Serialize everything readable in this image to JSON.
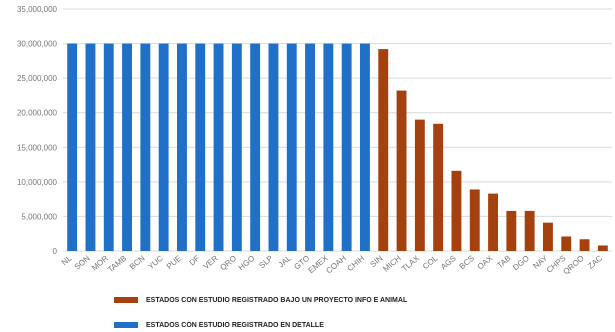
{
  "chart_data": {
    "type": "bar",
    "categories": [
      "NL",
      "SON",
      "MOR",
      "TAMB",
      "BCN",
      "YUC",
      "PUE",
      "DF",
      "VER",
      "QRO",
      "HGO",
      "SLP",
      "JAL",
      "GTO",
      "EMEX",
      "COAH",
      "CHIH",
      "SIN",
      "MICH",
      "TLAX",
      "COL",
      "AGS",
      "BCS",
      "OAX",
      "TAB",
      "DGO",
      "NAY",
      "CHPS",
      "QROO",
      "ZAC"
    ],
    "series": [
      {
        "name": "ESTADOS CON ESTUDIO REGISTRADO BAJO UN PROYECTO INFO E ANIMAL",
        "color": "#a4410e",
        "values": [
          null,
          null,
          null,
          null,
          null,
          null,
          null,
          null,
          null,
          null,
          null,
          null,
          null,
          null,
          null,
          null,
          null,
          29200000,
          23200000,
          19000000,
          18400000,
          11600000,
          8900000,
          8300000,
          5800000,
          5800000,
          4100000,
          2100000,
          1700000,
          800000
        ]
      },
      {
        "name": "ESTADOS CON ESTUDIO REGISTRADO EN DETALLE",
        "color": "#1f70c6",
        "values": [
          30000000,
          30000000,
          30000000,
          30000000,
          30000000,
          30000000,
          30000000,
          30000000,
          30000000,
          30000000,
          30000000,
          30000000,
          30000000,
          30000000,
          30000000,
          30000000,
          30000000,
          null,
          null,
          null,
          null,
          null,
          null,
          null,
          null,
          null,
          null,
          null,
          null,
          null
        ]
      }
    ],
    "ylim": [
      0,
      35000000
    ],
    "yticks": [
      {
        "value": 0,
        "label": "0"
      },
      {
        "value": 5000000,
        "label": "5,000,000"
      },
      {
        "value": 10000000,
        "label": "10,000,000"
      },
      {
        "value": 15000000,
        "label": "15,000,000"
      },
      {
        "value": 20000000,
        "label": "20,000,000"
      },
      {
        "value": 25000000,
        "label": "25,000,000"
      },
      {
        "value": 30000000,
        "label": "30,000,000"
      },
      {
        "value": 35000000,
        "label": "35,000,000"
      }
    ],
    "grid": true
  }
}
